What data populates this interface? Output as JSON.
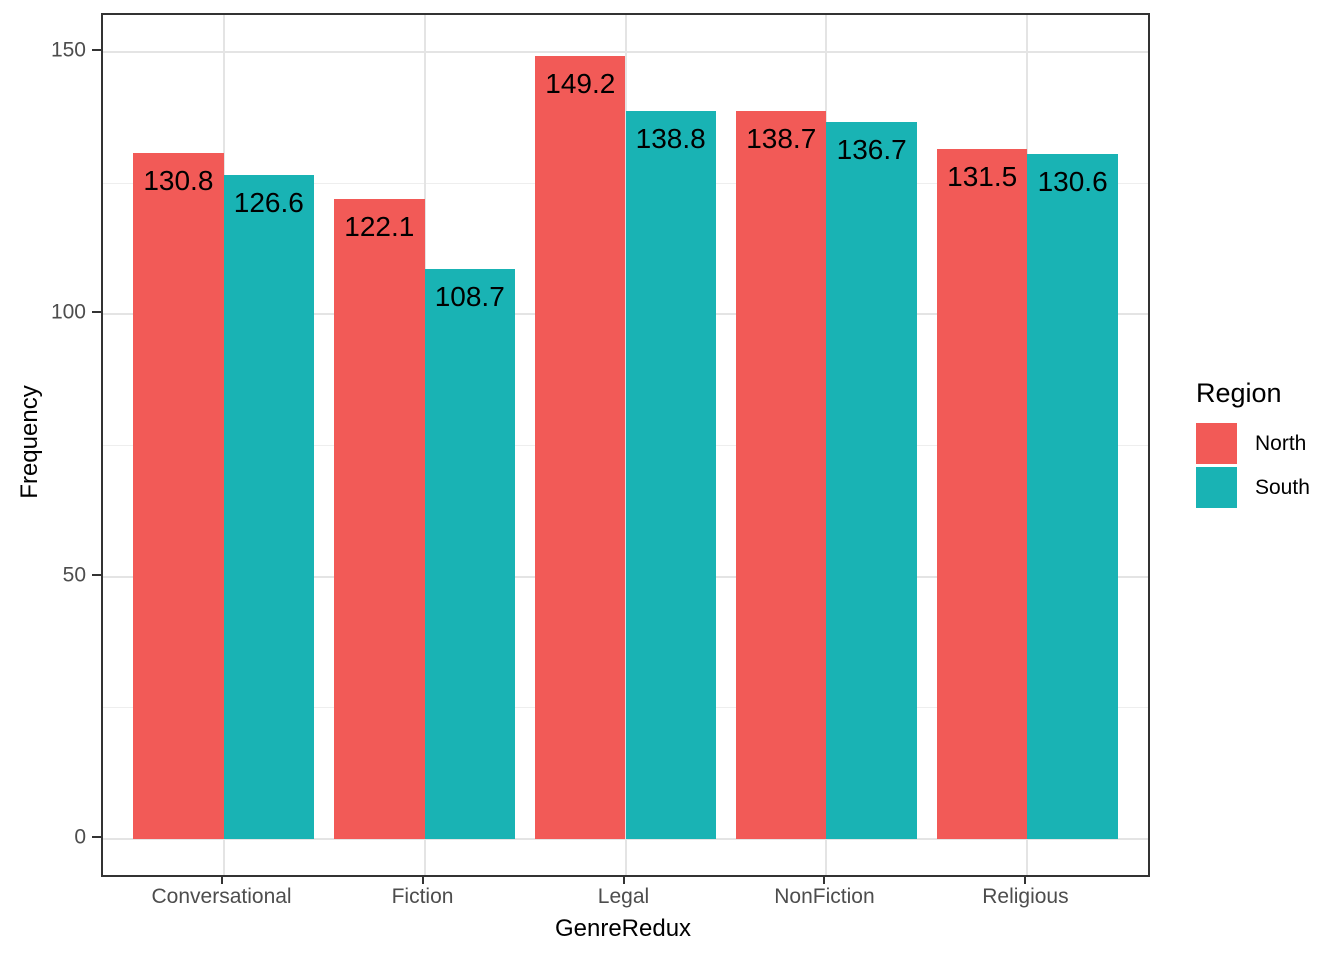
{
  "chart_data": {
    "type": "bar",
    "title": "",
    "xlabel": "GenreRedux",
    "ylabel": "Frequency",
    "categories": [
      "Conversational",
      "Fiction",
      "Legal",
      "NonFiction",
      "Religious"
    ],
    "series": [
      {
        "name": "North",
        "color": "#f25a57",
        "values": [
          130.8,
          122.1,
          149.2,
          138.7,
          131.5
        ]
      },
      {
        "name": "South",
        "color": "#19b3b4",
        "values": [
          126.6,
          108.7,
          138.8,
          136.7,
          130.6
        ]
      }
    ],
    "value_labels_shown": true,
    "y_ticks": [
      0,
      50,
      100,
      150
    ],
    "y_minor_gridlines": [
      25,
      75,
      125
    ],
    "ylim": [
      -6.9,
      157.1
    ],
    "grid": "on",
    "legend_title": "Region",
    "legend_position": "right",
    "bar_group_mode": "dodge"
  }
}
